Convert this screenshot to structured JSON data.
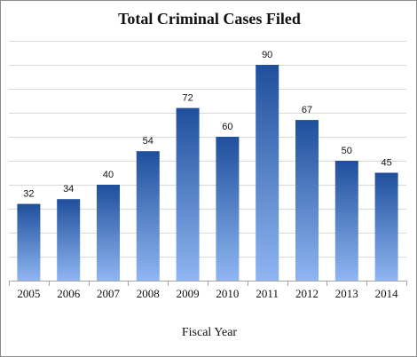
{
  "chart_data": {
    "type": "bar",
    "title": "Total Criminal Cases Filed",
    "xlabel": "Fiscal Year",
    "ylabel": "",
    "categories": [
      "2005",
      "2006",
      "2007",
      "2008",
      "2009",
      "2010",
      "2011",
      "2012",
      "2013",
      "2014"
    ],
    "values": [
      32,
      34,
      40,
      54,
      72,
      60,
      90,
      67,
      50,
      45
    ],
    "ylim": [
      0,
      100
    ],
    "grid": true,
    "legend": "none",
    "colors": {
      "bar_top": "#1f4f9c",
      "bar_bottom": "#8fb6f2",
      "grid": "#d9d9d9",
      "axis": "#a6a6a6"
    }
  }
}
